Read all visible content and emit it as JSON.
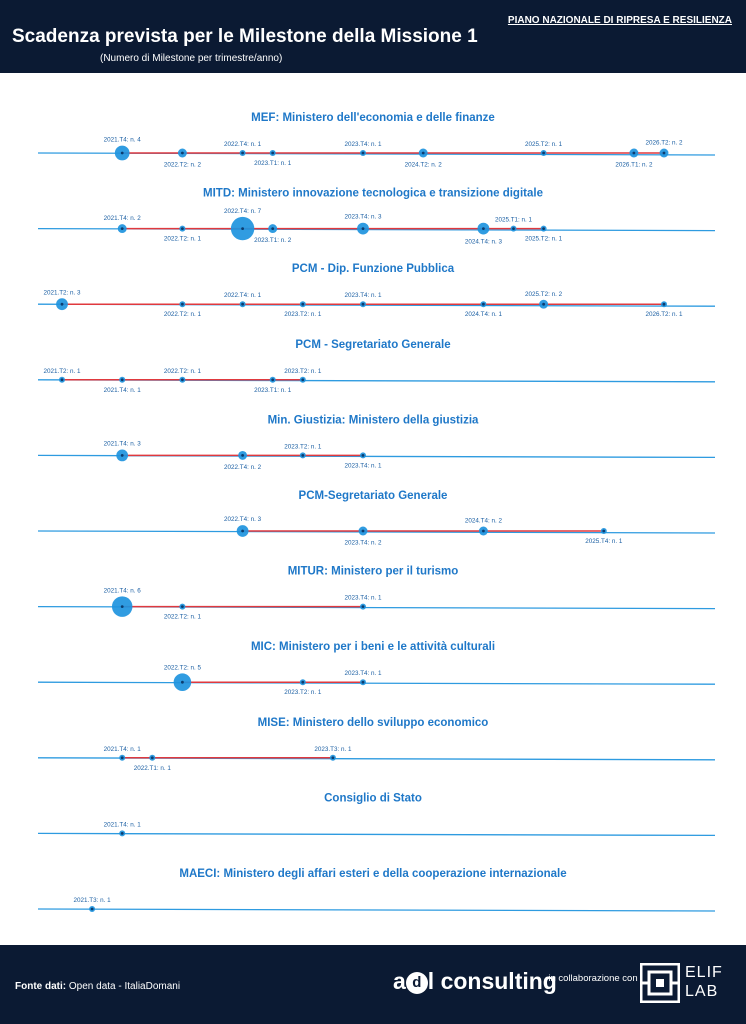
{
  "header": {
    "title": "Scadenza prevista per le Milestone della Missione 1",
    "subtitle": "(Numero di Milestone per trimestre/anno)",
    "top_right": "PIANO NAZIONALE DI RIPRESA E RESILIENZA"
  },
  "footer": {
    "source_label": "Fonte dati:",
    "source_value": "Open data - ItaliaDomani",
    "brand_a": "a",
    "brand_d": "d",
    "brand_rest": "l consulting",
    "collab_text": "in collaborazione con",
    "partner_line1": "ELIF",
    "partner_line2": "LAB"
  },
  "colors": {
    "dark_bg": "#0b1a33",
    "timeline": "#2e9be0",
    "range": "#e0393e",
    "dot": "#1e94de",
    "title_text": "#1f78c8"
  },
  "chart_data": {
    "type": "scatter",
    "x_axis": [
      "2021.T2",
      "2021.T3",
      "2021.T4",
      "2022.T1",
      "2022.T2",
      "2022.T3",
      "2022.T4",
      "2023.T1",
      "2023.T2",
      "2023.T3",
      "2023.T4",
      "2024.T1",
      "2024.T2",
      "2024.T3",
      "2024.T4",
      "2025.T1",
      "2025.T2",
      "2025.T3",
      "2025.T4",
      "2026.T1",
      "2026.T2"
    ],
    "panels": [
      {
        "title": "MEF: Ministero dell'economia e delle finanze",
        "points": [
          {
            "q": "2021.T4",
            "n": 4,
            "label": "2021.T4: n. 4"
          },
          {
            "q": "2022.T2",
            "n": 2,
            "label": "2022.T2: n. 2"
          },
          {
            "q": "2022.T4",
            "n": 1,
            "label": "2022.T4: n. 1"
          },
          {
            "q": "2023.T1",
            "n": 1,
            "label": "2023.T1: n. 1"
          },
          {
            "q": "2023.T4",
            "n": 1,
            "label": "2023.T4: n. 1"
          },
          {
            "q": "2024.T2",
            "n": 2,
            "label": "2024.T2: n. 2"
          },
          {
            "q": "2025.T2",
            "n": 1,
            "label": "2025.T2: n. 1"
          },
          {
            "q": "2026.T1",
            "n": 2,
            "label": "2026.T1: n. 2"
          },
          {
            "q": "2026.T2",
            "n": 2,
            "label": "2026.T2: n. 2"
          }
        ]
      },
      {
        "title": "MITD: Ministero innovazione tecnologica e transizione digitale",
        "points": [
          {
            "q": "2021.T4",
            "n": 2,
            "label": "2021.T4: n. 2"
          },
          {
            "q": "2022.T2",
            "n": 1,
            "label": "2022.T2: n. 1"
          },
          {
            "q": "2022.T4",
            "n": 7,
            "label": "2022.T4: n. 7"
          },
          {
            "q": "2023.T1",
            "n": 2,
            "label": "2023.T1: n. 2"
          },
          {
            "q": "2023.T4",
            "n": 3,
            "label": "2023.T4: n. 3"
          },
          {
            "q": "2024.T4",
            "n": 3,
            "label": "2024.T4: n. 3"
          },
          {
            "q": "2025.T1",
            "n": 1,
            "label": "2025.T1: n. 1"
          },
          {
            "q": "2025.T2",
            "n": 1,
            "label": "2025.T2: n. 1"
          }
        ]
      },
      {
        "title": "PCM - Dip. Funzione Pubblica",
        "points": [
          {
            "q": "2021.T2",
            "n": 3,
            "label": "2021.T2: n. 3"
          },
          {
            "q": "2022.T2",
            "n": 1,
            "label": "2022.T2: n. 1"
          },
          {
            "q": "2022.T4",
            "n": 1,
            "label": "2022.T4: n. 1"
          },
          {
            "q": "2023.T2",
            "n": 1,
            "label": "2023.T2: n. 1"
          },
          {
            "q": "2023.T4",
            "n": 1,
            "label": "2023.T4: n. 1"
          },
          {
            "q": "2024.T4",
            "n": 1,
            "label": "2024.T4: n. 1"
          },
          {
            "q": "2025.T2",
            "n": 2,
            "label": "2025.T2: n. 2"
          },
          {
            "q": "2026.T2",
            "n": 1,
            "label": "2026.T2: n. 1"
          }
        ]
      },
      {
        "title": "PCM - Segretariato Generale",
        "points": [
          {
            "q": "2021.T2",
            "n": 1,
            "label": "2021.T2: n. 1"
          },
          {
            "q": "2021.T4",
            "n": 1,
            "label": "2021.T4: n. 1"
          },
          {
            "q": "2022.T2",
            "n": 1,
            "label": "2022.T2: n. 1"
          },
          {
            "q": "2023.T1",
            "n": 1,
            "label": "2023.T1: n. 1"
          },
          {
            "q": "2023.T2",
            "n": 1,
            "label": "2023.T2: n. 1"
          }
        ]
      },
      {
        "title": "Min. Giustizia: Ministero della giustizia",
        "points": [
          {
            "q": "2021.T4",
            "n": 3,
            "label": "2021.T4: n. 3"
          },
          {
            "q": "2022.T4",
            "n": 2,
            "label": "2022.T4: n. 2"
          },
          {
            "q": "2023.T2",
            "n": 1,
            "label": "2023.T2: n. 1"
          },
          {
            "q": "2023.T4",
            "n": 1,
            "label": "2023.T4: n. 1"
          }
        ]
      },
      {
        "title": "PCM-Segretariato Generale",
        "points": [
          {
            "q": "2022.T4",
            "n": 3,
            "label": "2022.T4: n. 3"
          },
          {
            "q": "2023.T4",
            "n": 2,
            "label": "2023.T4: n. 2"
          },
          {
            "q": "2024.T4",
            "n": 2,
            "label": "2024.T4: n. 2"
          },
          {
            "q": "2025.T4",
            "n": 1,
            "label": "2025.T4: n. 1"
          }
        ]
      },
      {
        "title": "MITUR: Ministero per il turismo",
        "points": [
          {
            "q": "2021.T4",
            "n": 6,
            "label": "2021.T4: n. 6"
          },
          {
            "q": "2022.T2",
            "n": 1,
            "label": "2022.T2: n. 1"
          },
          {
            "q": "2023.T4",
            "n": 1,
            "label": "2023.T4: n. 1"
          }
        ]
      },
      {
        "title": "MIC: Ministero per i beni e le attività culturali",
        "points": [
          {
            "q": "2022.T2",
            "n": 5,
            "label": "2022.T2: n. 5"
          },
          {
            "q": "2023.T2",
            "n": 1,
            "label": "2023.T2: n. 1"
          },
          {
            "q": "2023.T4",
            "n": 1,
            "label": "2023.T4: n. 1"
          }
        ]
      },
      {
        "title": "MISE: Ministero dello sviluppo economico",
        "points": [
          {
            "q": "2021.T4",
            "n": 1,
            "label": "2021.T4: n. 1"
          },
          {
            "q": "2022.T1",
            "n": 1,
            "label": "2022.T1: n. 1"
          },
          {
            "q": "2023.T3",
            "n": 1,
            "label": "2023.T3: n. 1"
          }
        ]
      },
      {
        "title": "Consiglio di Stato",
        "points": [
          {
            "q": "2021.T4",
            "n": 1,
            "label": "2021.T4: n. 1"
          }
        ]
      },
      {
        "title": "MAECI: Ministero degli affari esteri e della cooperazione internazionale",
        "points": [
          {
            "q": "2021.T3",
            "n": 1,
            "label": "2021.T3: n. 1"
          }
        ]
      }
    ]
  }
}
